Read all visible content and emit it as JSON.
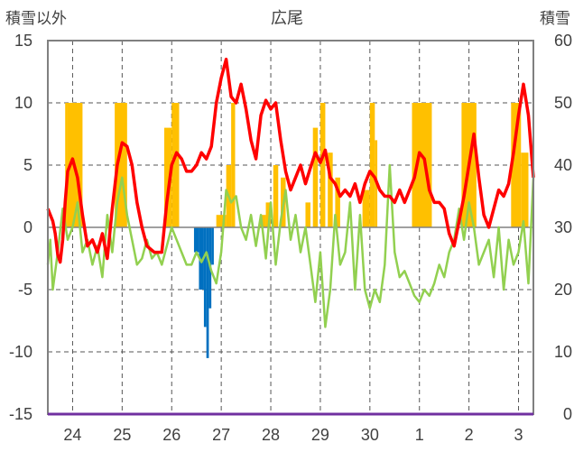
{
  "chart_data": {
    "type": "bar+line",
    "title": "広尾",
    "ylabel_left": "積雪以外",
    "ylabel_right": "積雪",
    "ylim_left": [
      -15,
      15
    ],
    "ylim_right": [
      0,
      60
    ],
    "yticks_left": [
      "15",
      "10",
      "5",
      "0",
      "-5",
      "-10",
      "-15"
    ],
    "yticks_right": [
      "60",
      "50",
      "40",
      "30",
      "20",
      "10",
      "0"
    ],
    "x_range_days": [
      0,
      9.8
    ],
    "x_categories": [
      {
        "label": "24",
        "x": 0.5
      },
      {
        "label": "25",
        "x": 1.5
      },
      {
        "label": "26",
        "x": 2.5
      },
      {
        "label": "27",
        "x": 3.5
      },
      {
        "label": "28",
        "x": 4.5
      },
      {
        "label": "29",
        "x": 5.5
      },
      {
        "label": "30",
        "x": 6.5
      },
      {
        "label": "1",
        "x": 7.5
      },
      {
        "label": "2",
        "x": 8.5
      },
      {
        "label": "3",
        "x": 9.5
      }
    ],
    "grid_dashed_at_x": [
      0.5,
      1.5,
      2.5,
      3.5,
      4.5,
      5.5,
      6.5,
      7.5,
      8.5,
      9.5
    ],
    "grid_dashed_at_y": [
      10,
      5,
      -5,
      -10
    ],
    "colors": {
      "temperature": "#ff0000",
      "other_line": "#92d050",
      "positive_bars": "#ffc000",
      "negative_bars": "#0070c0",
      "frame": "#808080",
      "x_axis_line": "#7030a0",
      "zero_line": "#808080"
    },
    "positive_bars": [
      [
        0.35,
        0.4,
        10
      ],
      [
        0.4,
        0.7,
        10
      ],
      [
        1.35,
        1.6,
        10
      ],
      [
        2.35,
        2.5,
        8
      ],
      [
        2.5,
        2.55,
        10
      ],
      [
        2.55,
        2.65,
        10
      ],
      [
        3.4,
        3.6,
        1
      ],
      [
        3.6,
        3.7,
        5
      ],
      [
        3.7,
        3.78,
        10
      ],
      [
        4.28,
        4.4,
        1
      ],
      [
        4.4,
        4.5,
        2
      ],
      [
        4.55,
        4.65,
        5
      ],
      [
        4.7,
        4.8,
        4
      ],
      [
        5.2,
        5.3,
        2
      ],
      [
        5.35,
        5.45,
        8
      ],
      [
        5.5,
        5.6,
        10
      ],
      [
        5.65,
        5.75,
        6
      ],
      [
        5.8,
        5.9,
        4
      ],
      [
        6.35,
        6.5,
        3
      ],
      [
        6.5,
        6.6,
        10
      ],
      [
        6.6,
        6.65,
        7
      ],
      [
        7.35,
        7.75,
        10
      ],
      [
        8.35,
        8.65,
        10
      ],
      [
        9.35,
        9.55,
        10
      ],
      [
        9.55,
        9.7,
        6
      ]
    ],
    "negative_bars": [
      [
        2.95,
        3.05,
        -2
      ],
      [
        3.05,
        3.15,
        -5
      ],
      [
        3.15,
        3.2,
        -8
      ],
      [
        3.2,
        3.25,
        -10.5
      ],
      [
        3.25,
        3.3,
        -6.5
      ],
      [
        3.3,
        3.35,
        -3
      ]
    ],
    "temperature": [
      [
        0,
        1.5
      ],
      [
        0.1,
        0.5
      ],
      [
        0.15,
        -0.5
      ],
      [
        0.2,
        -2.2
      ],
      [
        0.25,
        -2.8
      ],
      [
        0.3,
        -1
      ],
      [
        0.35,
        2
      ],
      [
        0.4,
        4.5
      ],
      [
        0.5,
        5.5
      ],
      [
        0.6,
        4
      ],
      [
        0.7,
        1
      ],
      [
        0.8,
        -1.5
      ],
      [
        0.9,
        -1
      ],
      [
        1.0,
        -2
      ],
      [
        1.1,
        -0.5
      ],
      [
        1.2,
        -2.5
      ],
      [
        1.3,
        1.5
      ],
      [
        1.4,
        5
      ],
      [
        1.5,
        6.8
      ],
      [
        1.6,
        6.5
      ],
      [
        1.7,
        5
      ],
      [
        1.8,
        2
      ],
      [
        1.9,
        0
      ],
      [
        2.0,
        -1.5
      ],
      [
        2.15,
        -2
      ],
      [
        2.3,
        -2
      ],
      [
        2.4,
        2
      ],
      [
        2.5,
        5
      ],
      [
        2.6,
        6
      ],
      [
        2.7,
        5.5
      ],
      [
        2.8,
        4.5
      ],
      [
        2.9,
        4.5
      ],
      [
        3.0,
        5
      ],
      [
        3.1,
        6
      ],
      [
        3.2,
        5.5
      ],
      [
        3.3,
        6.5
      ],
      [
        3.4,
        10
      ],
      [
        3.5,
        12
      ],
      [
        3.6,
        13.5
      ],
      [
        3.7,
        10.5
      ],
      [
        3.8,
        10
      ],
      [
        3.9,
        11.5
      ],
      [
        4.0,
        9.5
      ],
      [
        4.1,
        7
      ],
      [
        4.2,
        5.5
      ],
      [
        4.3,
        9
      ],
      [
        4.4,
        10.2
      ],
      [
        4.5,
        9.5
      ],
      [
        4.6,
        10
      ],
      [
        4.7,
        7
      ],
      [
        4.8,
        4.5
      ],
      [
        4.9,
        3
      ],
      [
        5.0,
        4
      ],
      [
        5.1,
        5
      ],
      [
        5.2,
        3.5
      ],
      [
        5.3,
        4.8
      ],
      [
        5.4,
        6
      ],
      [
        5.5,
        5.2
      ],
      [
        5.6,
        6.2
      ],
      [
        5.7,
        4
      ],
      [
        5.8,
        3.5
      ],
      [
        5.9,
        2.5
      ],
      [
        6.0,
        3
      ],
      [
        6.1,
        2.5
      ],
      [
        6.2,
        3.5
      ],
      [
        6.3,
        2
      ],
      [
        6.4,
        3.5
      ],
      [
        6.5,
        4.5
      ],
      [
        6.6,
        4
      ],
      [
        6.7,
        3
      ],
      [
        6.8,
        2.5
      ],
      [
        6.9,
        2.5
      ],
      [
        7.0,
        2
      ],
      [
        7.1,
        3
      ],
      [
        7.2,
        2
      ],
      [
        7.3,
        3
      ],
      [
        7.4,
        4
      ],
      [
        7.5,
        6
      ],
      [
        7.6,
        5.5
      ],
      [
        7.7,
        3
      ],
      [
        7.8,
        2
      ],
      [
        7.9,
        2
      ],
      [
        8.0,
        1.5
      ],
      [
        8.1,
        -0.5
      ],
      [
        8.2,
        -1.5
      ],
      [
        8.3,
        0.5
      ],
      [
        8.4,
        2.5
      ],
      [
        8.5,
        5
      ],
      [
        8.6,
        7.5
      ],
      [
        8.7,
        4
      ],
      [
        8.8,
        1
      ],
      [
        8.9,
        0
      ],
      [
        9.0,
        1.5
      ],
      [
        9.1,
        3
      ],
      [
        9.2,
        2.5
      ],
      [
        9.3,
        3.5
      ],
      [
        9.4,
        6
      ],
      [
        9.5,
        9
      ],
      [
        9.6,
        11.5
      ],
      [
        9.7,
        9
      ],
      [
        9.8,
        4
      ]
    ],
    "other_series": [
      [
        0,
        -3
      ],
      [
        0.05,
        -1
      ],
      [
        0.1,
        -5
      ],
      [
        0.2,
        -2
      ],
      [
        0.3,
        1.5
      ],
      [
        0.4,
        -1
      ],
      [
        0.5,
        0
      ],
      [
        0.6,
        2
      ],
      [
        0.7,
        -2
      ],
      [
        0.8,
        -1
      ],
      [
        0.9,
        -3
      ],
      [
        1.0,
        -1.5
      ],
      [
        1.1,
        -4
      ],
      [
        1.2,
        1
      ],
      [
        1.3,
        -2
      ],
      [
        1.4,
        2
      ],
      [
        1.5,
        4
      ],
      [
        1.6,
        1
      ],
      [
        1.7,
        -1
      ],
      [
        1.8,
        -3
      ],
      [
        1.9,
        -2.5
      ],
      [
        2.0,
        -1
      ],
      [
        2.1,
        -2.5
      ],
      [
        2.2,
        -2
      ],
      [
        2.3,
        -3
      ],
      [
        2.4,
        -1.5
      ],
      [
        2.5,
        0
      ],
      [
        2.6,
        -1
      ],
      [
        2.7,
        -2
      ],
      [
        2.8,
        -3
      ],
      [
        2.9,
        -3
      ],
      [
        3.0,
        -2
      ],
      [
        3.1,
        -2.8
      ],
      [
        3.2,
        -2
      ],
      [
        3.3,
        -3.5
      ],
      [
        3.4,
        -4.5
      ],
      [
        3.5,
        -2
      ],
      [
        3.6,
        3
      ],
      [
        3.7,
        2
      ],
      [
        3.8,
        2.5
      ],
      [
        3.9,
        0
      ],
      [
        4.0,
        -1
      ],
      [
        4.1,
        1
      ],
      [
        4.2,
        -1.5
      ],
      [
        4.3,
        1
      ],
      [
        4.4,
        -2.5
      ],
      [
        4.5,
        2
      ],
      [
        4.6,
        -3
      ],
      [
        4.7,
        0.5
      ],
      [
        4.8,
        3
      ],
      [
        4.9,
        -1
      ],
      [
        5.0,
        1
      ],
      [
        5.1,
        -2
      ],
      [
        5.2,
        0
      ],
      [
        5.3,
        -3
      ],
      [
        5.4,
        -6
      ],
      [
        5.5,
        -2
      ],
      [
        5.6,
        -8
      ],
      [
        5.7,
        -5
      ],
      [
        5.8,
        1
      ],
      [
        5.9,
        -3
      ],
      [
        6.0,
        -2
      ],
      [
        6.1,
        2
      ],
      [
        6.2,
        -5
      ],
      [
        6.3,
        1
      ],
      [
        6.4,
        -5
      ],
      [
        6.5,
        -6.5
      ],
      [
        6.6,
        -5
      ],
      [
        6.7,
        -6
      ],
      [
        6.8,
        -3
      ],
      [
        6.9,
        5
      ],
      [
        7.0,
        -2
      ],
      [
        7.1,
        -4
      ],
      [
        7.2,
        -3.5
      ],
      [
        7.3,
        -4.5
      ],
      [
        7.4,
        -5.5
      ],
      [
        7.5,
        -6
      ],
      [
        7.6,
        -5
      ],
      [
        7.7,
        -5.5
      ],
      [
        7.8,
        -4.5
      ],
      [
        7.9,
        -3
      ],
      [
        8.0,
        -4
      ],
      [
        8.1,
        -2
      ],
      [
        8.2,
        -1
      ],
      [
        8.3,
        1.5
      ],
      [
        8.4,
        -1
      ],
      [
        8.5,
        2
      ],
      [
        8.6,
        0
      ],
      [
        8.7,
        -3
      ],
      [
        8.8,
        -2
      ],
      [
        8.9,
        -1
      ],
      [
        9.0,
        -4
      ],
      [
        9.1,
        0
      ],
      [
        9.2,
        -5
      ],
      [
        9.3,
        -1
      ],
      [
        9.4,
        -3
      ],
      [
        9.5,
        -2
      ],
      [
        9.6,
        0.5
      ],
      [
        9.7,
        -4.5
      ],
      [
        9.8,
        4
      ]
    ]
  }
}
